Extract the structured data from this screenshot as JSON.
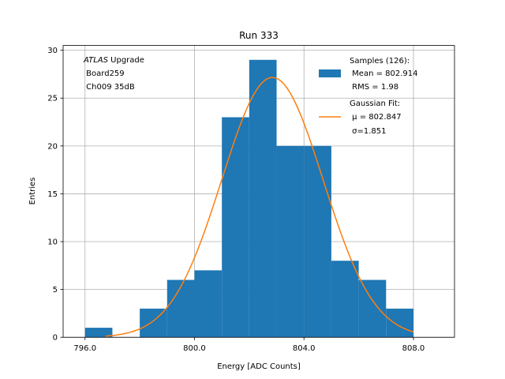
{
  "chart_data": {
    "type": "bar",
    "title": "Run 333",
    "xlabel": "Energy [ADC Counts]",
    "ylabel": "Entries",
    "xlim": [
      795.2,
      809.5
    ],
    "ylim": [
      0,
      30.5
    ],
    "xticks": [
      796,
      800,
      804,
      808
    ],
    "xtick_labels": [
      "796.0",
      "800.0",
      "804.0",
      "808.0"
    ],
    "yticks": [
      0,
      5,
      10,
      15,
      20,
      25,
      30
    ],
    "ytick_labels": [
      "0",
      "5",
      "10",
      "15",
      "20",
      "25",
      "30"
    ],
    "grid": true,
    "bin_edges": [
      796,
      797,
      798,
      799,
      800,
      801,
      802,
      803,
      804,
      805,
      806,
      807,
      808
    ],
    "counts": [
      1,
      0,
      3,
      6,
      7,
      23,
      29,
      20,
      20,
      8,
      6,
      3
    ],
    "bar_color": "#1f77b4",
    "fit": {
      "mu": 802.847,
      "sigma": 1.851,
      "x_range": [
        796.75,
        808.0
      ],
      "color": "#ff7f0e"
    },
    "annotation": {
      "line1_italic": "ATLAS",
      "line1_rest": " Upgrade",
      "line2": " Board259",
      "line3": " Ch009 35dB"
    },
    "legend": {
      "placement": "top-right",
      "samples_title": "Samples (126):",
      "samples_mean": " Mean = 802.914",
      "samples_rms": " RMS = 1.98",
      "fit_title": "Gaussian Fit:",
      "fit_mu": " μ = 802.847",
      "fit_sigma": " σ=1.851"
    }
  }
}
